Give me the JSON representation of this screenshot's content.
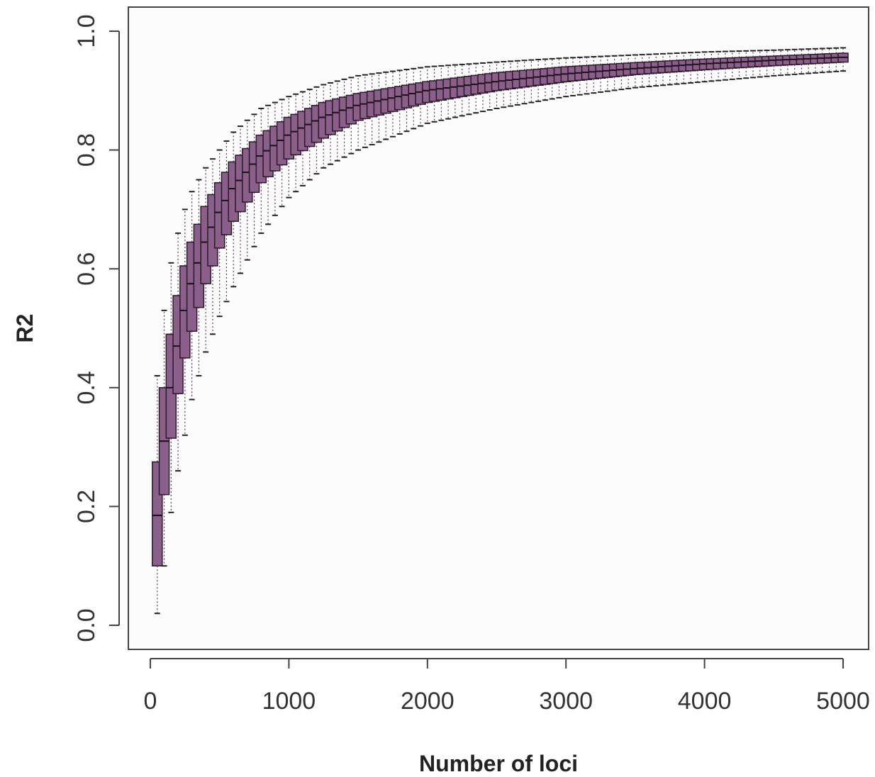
{
  "chart_data": {
    "type": "boxplot",
    "title": "",
    "xlabel": "Number of loci",
    "ylabel": "R2",
    "xlim": [
      0,
      5000
    ],
    "ylim": [
      0.0,
      1.0
    ],
    "x_ticks": [
      "0",
      "1000",
      "2000",
      "3000",
      "4000",
      "5000"
    ],
    "y_ticks": [
      "0.0",
      "0.2",
      "0.4",
      "0.6",
      "0.8",
      "1.0"
    ],
    "grid": false,
    "legend": "none",
    "box_fill": "#8a5f8a",
    "x_step": 50,
    "x_start": 50,
    "x_end": 5000,
    "summary_points": [
      {
        "x": 50,
        "median": 0.185,
        "q1": 0.1,
        "q3": 0.275,
        "whisker_low": 0.02,
        "whisker_high": 0.42
      },
      {
        "x": 100,
        "median": 0.31,
        "q1": 0.22,
        "q3": 0.4,
        "whisker_low": 0.1,
        "whisker_high": 0.53
      },
      {
        "x": 150,
        "median": 0.4,
        "q1": 0.315,
        "q3": 0.49,
        "whisker_low": 0.19,
        "whisker_high": 0.61
      },
      {
        "x": 200,
        "median": 0.47,
        "q1": 0.39,
        "q3": 0.555,
        "whisker_low": 0.26,
        "whisker_high": 0.66
      },
      {
        "x": 250,
        "median": 0.53,
        "q1": 0.45,
        "q3": 0.605,
        "whisker_low": 0.32,
        "whisker_high": 0.7
      },
      {
        "x": 300,
        "median": 0.575,
        "q1": 0.495,
        "q3": 0.645,
        "whisker_low": 0.38,
        "whisker_high": 0.73
      },
      {
        "x": 400,
        "median": 0.645,
        "q1": 0.575,
        "q3": 0.705,
        "whisker_low": 0.46,
        "whisker_high": 0.77
      },
      {
        "x": 500,
        "median": 0.695,
        "q1": 0.635,
        "q3": 0.745,
        "whisker_low": 0.52,
        "whisker_high": 0.8
      },
      {
        "x": 600,
        "median": 0.735,
        "q1": 0.68,
        "q3": 0.78,
        "whisker_low": 0.57,
        "whisker_high": 0.83
      },
      {
        "x": 800,
        "median": 0.79,
        "q1": 0.745,
        "q3": 0.825,
        "whisker_low": 0.66,
        "whisker_high": 0.87
      },
      {
        "x": 1000,
        "median": 0.825,
        "q1": 0.785,
        "q3": 0.855,
        "whisker_low": 0.72,
        "whisker_high": 0.89
      },
      {
        "x": 1250,
        "median": 0.855,
        "q1": 0.82,
        "q3": 0.88,
        "whisker_low": 0.77,
        "whisker_high": 0.91
      },
      {
        "x": 1500,
        "median": 0.875,
        "q1": 0.85,
        "q3": 0.895,
        "whisker_low": 0.8,
        "whisker_high": 0.925
      },
      {
        "x": 2000,
        "median": 0.9,
        "q1": 0.88,
        "q3": 0.915,
        "whisker_low": 0.845,
        "whisker_high": 0.94
      },
      {
        "x": 2500,
        "median": 0.915,
        "q1": 0.9,
        "q3": 0.93,
        "whisker_low": 0.87,
        "whisker_high": 0.948
      },
      {
        "x": 3000,
        "median": 0.928,
        "q1": 0.915,
        "q3": 0.94,
        "whisker_low": 0.89,
        "whisker_high": 0.955
      },
      {
        "x": 3500,
        "median": 0.937,
        "q1": 0.927,
        "q3": 0.947,
        "whisker_low": 0.905,
        "whisker_high": 0.96
      },
      {
        "x": 4000,
        "median": 0.945,
        "q1": 0.935,
        "q3": 0.953,
        "whisker_low": 0.915,
        "whisker_high": 0.965
      },
      {
        "x": 4500,
        "median": 0.951,
        "q1": 0.942,
        "q3": 0.958,
        "whisker_low": 0.925,
        "whisker_high": 0.968
      },
      {
        "x": 5000,
        "median": 0.956,
        "q1": 0.948,
        "q3": 0.963,
        "whisker_low": 0.933,
        "whisker_high": 0.972
      }
    ]
  }
}
